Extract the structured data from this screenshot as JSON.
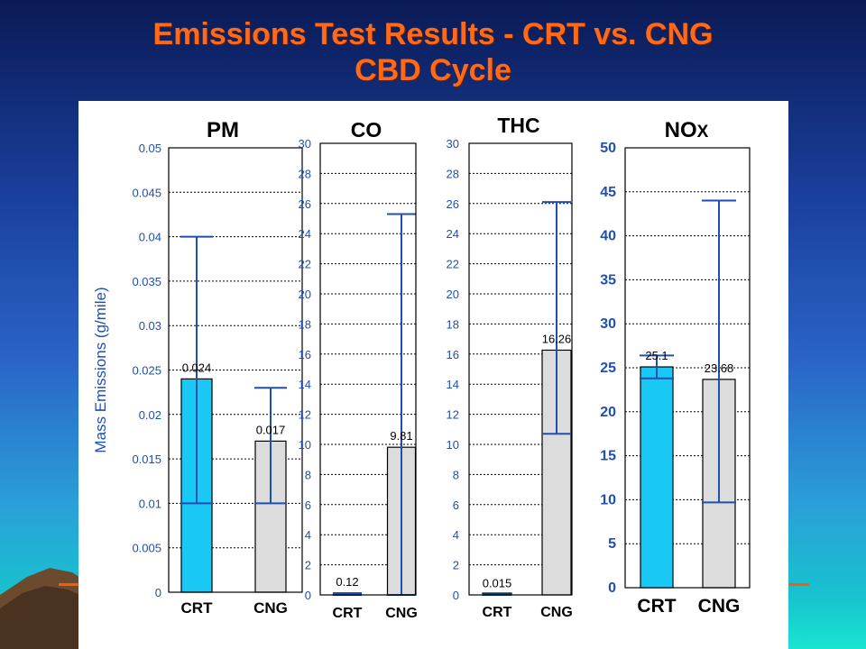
{
  "slide": {
    "title_line1": "Emissions Test Results - CRT vs. CNG",
    "title_line2": "CBD Cycle"
  },
  "colors": {
    "crt_bar": "#19c8f5",
    "cng_bar": "#dcdcdc",
    "error_bar": "#1f4fb0",
    "title": "#ff6a1a"
  },
  "chart_data": [
    {
      "type": "bar",
      "title": "PM",
      "ylabel": "Mass Emissions (g/mile)",
      "categories": [
        "CRT",
        "CNG"
      ],
      "values": [
        0.024,
        0.017
      ],
      "value_labels": [
        "0.024",
        "0.017"
      ],
      "error_low": [
        0.01,
        0.01
      ],
      "error_high": [
        0.04,
        0.023
      ],
      "ylim": [
        0,
        0.05
      ],
      "yticks": [
        0,
        0.005,
        0.01,
        0.015,
        0.02,
        0.025,
        0.03,
        0.035,
        0.04,
        0.045,
        0.05
      ],
      "ytick_labels": [
        "0",
        "0.005",
        "0.01",
        "0.015",
        "0.02",
        "0.025",
        "0.03",
        "0.035",
        "0.04",
        "0.045",
        "0.05"
      ],
      "grid": true
    },
    {
      "type": "bar",
      "title": "CO",
      "categories": [
        "CRT",
        "CNG"
      ],
      "values": [
        0.12,
        9.81
      ],
      "value_labels": [
        "0.12",
        "9.81"
      ],
      "error_low": [
        0,
        0
      ],
      "error_high": [
        0.12,
        25.3
      ],
      "ylim": [
        0,
        30
      ],
      "yticks": [
        0,
        2,
        4,
        6,
        8,
        10,
        12,
        14,
        16,
        18,
        20,
        22,
        24,
        26,
        28,
        30
      ],
      "ytick_labels": [
        "0",
        "2",
        "4",
        "6",
        "8",
        "10",
        "12",
        "14",
        "16",
        "18",
        "20",
        "22",
        "24",
        "26",
        "28",
        "30"
      ],
      "grid": true
    },
    {
      "type": "bar",
      "title": "THC",
      "categories": [
        "CRT",
        "CNG"
      ],
      "values": [
        0.015,
        16.26
      ],
      "value_labels": [
        "0.015",
        "16.26"
      ],
      "error_low": [
        0,
        10.7
      ],
      "error_high": [
        0.015,
        26.1
      ],
      "ylim": [
        0,
        30
      ],
      "yticks": [
        0,
        2,
        4,
        6,
        8,
        10,
        12,
        14,
        16,
        18,
        20,
        22,
        24,
        26,
        28,
        30
      ],
      "ytick_labels": [
        "0",
        "2",
        "4",
        "6",
        "8",
        "10",
        "12",
        "14",
        "16",
        "18",
        "20",
        "22",
        "24",
        "26",
        "28",
        "30"
      ],
      "grid": true
    },
    {
      "type": "bar",
      "title": "NOx",
      "title_main": "NO",
      "title_sub": "X",
      "categories": [
        "CRT",
        "CNG"
      ],
      "values": [
        25.1,
        23.68
      ],
      "value_labels": [
        "25.1",
        "23.68"
      ],
      "error_low": [
        23.8,
        9.7
      ],
      "error_high": [
        26.4,
        44
      ],
      "ylim": [
        0,
        50
      ],
      "yticks": [
        0,
        5,
        10,
        15,
        20,
        25,
        30,
        35,
        40,
        45,
        50
      ],
      "ytick_labels": [
        "0",
        "5",
        "10",
        "15",
        "20",
        "25",
        "30",
        "35",
        "40",
        "45",
        "50"
      ],
      "grid": true
    }
  ]
}
